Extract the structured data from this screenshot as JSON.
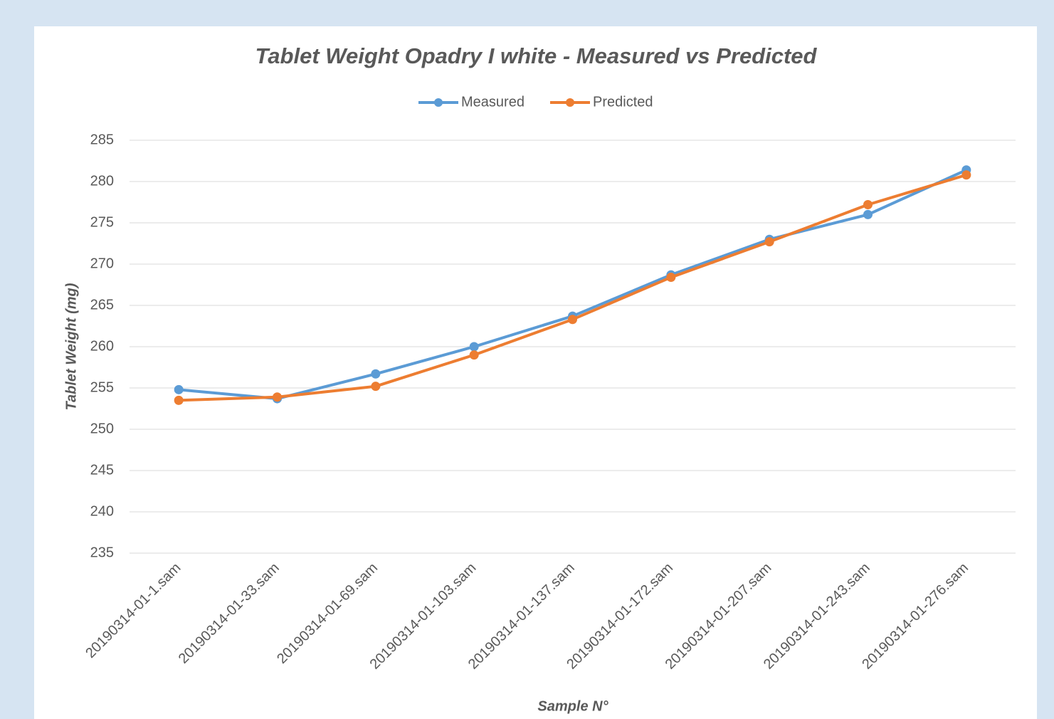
{
  "chart_data": {
    "type": "line",
    "title": "Tablet Weight Opadry I white - Measured vs Predicted",
    "x_label": "Sample N°",
    "y_label": "Tablet Weight (mg)",
    "categories": [
      "20190314-01-1.sam",
      "20190314-01-33.sam",
      "20190314-01-69.sam",
      "20190314-01-103.sam",
      "20190314-01-137.sam",
      "20190314-01-172.sam",
      "20190314-01-207.sam",
      "20190314-01-243.sam",
      "20190314-01-276.sam"
    ],
    "series": [
      {
        "name": "Measured",
        "color": "#5b9bd5",
        "values": [
          254.8,
          253.7,
          256.7,
          260.0,
          263.7,
          268.7,
          273.0,
          276.0,
          281.4
        ]
      },
      {
        "name": "Predicted",
        "color": "#ed7d31",
        "values": [
          253.5,
          253.9,
          255.2,
          259.0,
          263.3,
          268.4,
          272.7,
          277.2,
          280.8
        ]
      }
    ],
    "ylim": [
      235,
      285
    ],
    "yticks": [
      235,
      240,
      245,
      250,
      255,
      260,
      265,
      270,
      275,
      280,
      285
    ],
    "grid": true,
    "legend": "top"
  }
}
